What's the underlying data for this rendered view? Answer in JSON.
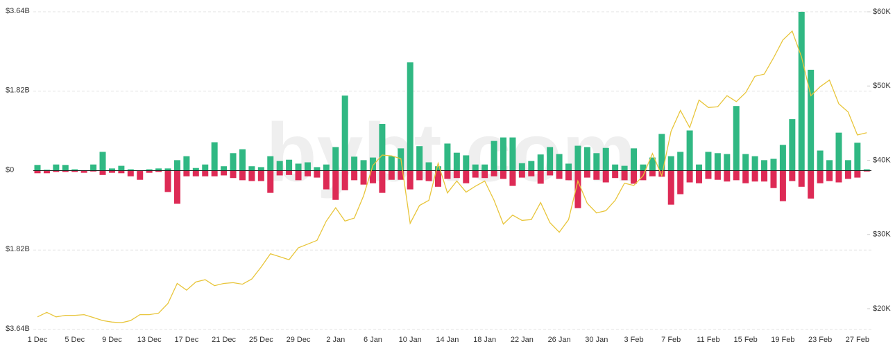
{
  "chart_data": {
    "type": "bar",
    "watermark": "bybt.com",
    "categories": [
      "1 Dec",
      null,
      null,
      null,
      "5 Dec",
      null,
      null,
      null,
      "9 Dec",
      null,
      null,
      null,
      "13 Dec",
      null,
      null,
      null,
      "17 Dec",
      null,
      null,
      null,
      "21 Dec",
      null,
      null,
      null,
      "25 Dec",
      null,
      null,
      null,
      "29 Dec",
      null,
      null,
      null,
      "2 Jan",
      null,
      null,
      null,
      "6 Jan",
      null,
      null,
      null,
      "10 Jan",
      null,
      null,
      null,
      "14 Jan",
      null,
      null,
      null,
      "18 Jan",
      null,
      null,
      null,
      "22 Jan",
      null,
      null,
      null,
      "26 Jan",
      null,
      null,
      null,
      "30 Jan",
      null,
      null,
      null,
      "3 Feb",
      null,
      null,
      null,
      "7 Feb",
      null,
      null,
      null,
      "11 Feb",
      null,
      null,
      null,
      "15 Feb",
      null,
      null,
      null,
      "19 Feb",
      null,
      null,
      null,
      "23 Feb",
      null,
      null,
      null,
      "27 Feb",
      null
    ],
    "series": [
      {
        "type": "bar",
        "color": "#30b883",
        "values": [
          0.13,
          0.02,
          0.14,
          0.13,
          0.03,
          0.01,
          0.14,
          0.43,
          0.05,
          0.11,
          0.03,
          0,
          0.03,
          0.05,
          0.05,
          0.24,
          0.33,
          0.06,
          0.14,
          0.65,
          0.1,
          0.4,
          0.49,
          0.1,
          0.08,
          0.33,
          0.22,
          0.25,
          0.16,
          0.19,
          0.08,
          0.14,
          0.54,
          1.72,
          0.32,
          0.24,
          0.3,
          1.07,
          0.33,
          0.51,
          2.48,
          0.56,
          0.19,
          0.1,
          0.62,
          0.41,
          0.35,
          0.14,
          0.14,
          0.68,
          0.76,
          0.76,
          0.17,
          0.22,
          0.37,
          0.54,
          0.38,
          0.16,
          0.57,
          0.54,
          0.4,
          0.52,
          0.14,
          0.11,
          0.51,
          0.14,
          0.3,
          0.84,
          0.33,
          0.43,
          0.92,
          0.14,
          0.43,
          0.4,
          0.38,
          1.48,
          0.38,
          0.33,
          0.24,
          0.27,
          0.59,
          1.18,
          3.64,
          2.31,
          0.46,
          0.24,
          0.87,
          0.24,
          0.64,
          0.03
        ]
      },
      {
        "type": "bar",
        "color": "#dd2a55",
        "values": [
          -0.06,
          -0.06,
          -0.03,
          -0.03,
          -0.03,
          -0.05,
          -0.02,
          -0.1,
          -0.05,
          -0.06,
          -0.13,
          -0.21,
          -0.05,
          -0.03,
          -0.49,
          -0.76,
          -0.13,
          -0.13,
          -0.13,
          -0.13,
          -0.11,
          -0.17,
          -0.22,
          -0.24,
          -0.24,
          -0.51,
          -0.11,
          -0.1,
          -0.22,
          -0.13,
          -0.16,
          -0.43,
          -0.67,
          -0.45,
          -0.22,
          -0.32,
          -0.29,
          -0.51,
          -0.21,
          -0.21,
          -0.43,
          -0.22,
          -0.24,
          -0.37,
          -0.19,
          -0.17,
          -0.29,
          -0.16,
          -0.17,
          -0.13,
          -0.19,
          -0.35,
          -0.16,
          -0.13,
          -0.3,
          -0.11,
          -0.19,
          -0.22,
          -0.86,
          -0.16,
          -0.21,
          -0.27,
          -0.17,
          -0.22,
          -0.3,
          -0.22,
          -0.13,
          -0.14,
          -0.78,
          -0.54,
          -0.27,
          -0.29,
          -0.19,
          -0.21,
          -0.25,
          -0.22,
          -0.29,
          -0.25,
          -0.25,
          -0.4,
          -0.7,
          -0.24,
          -0.37,
          -0.64,
          -0.29,
          -0.24,
          -0.27,
          -0.19,
          -0.16,
          -0.02
        ]
      },
      {
        "type": "line",
        "axis": "y2",
        "color": "#e8c53a",
        "values": [
          18900,
          19500,
          18900,
          19100,
          19100,
          19200,
          18800,
          18400,
          18200,
          18100,
          18400,
          19200,
          19200,
          19400,
          20700,
          23400,
          22500,
          23600,
          23900,
          23100,
          23400,
          23500,
          23300,
          24000,
          25600,
          27400,
          27000,
          26600,
          28200,
          28700,
          29200,
          31800,
          33600,
          31800,
          32200,
          35200,
          39300,
          40700,
          40600,
          40200,
          31500,
          33900,
          34600,
          39600,
          35600,
          37200,
          35700,
          36500,
          37200,
          34600,
          31400,
          32600,
          31900,
          32000,
          34300,
          31600,
          30300,
          32000,
          37200,
          34200,
          32900,
          33200,
          34600,
          36900,
          36600,
          37900,
          40900,
          37900,
          43900,
          46700,
          44400,
          48100,
          47100,
          47200,
          48700,
          47900,
          49100,
          51300,
          51600,
          53800,
          56200,
          57400,
          53900,
          48700,
          49900,
          50800,
          47600,
          46500,
          43400,
          43700
        ]
      }
    ],
    "ylim": [
      -3.64,
      3.64
    ],
    "yticks": [
      {
        "value": 3.64,
        "label": "$3.64B"
      },
      {
        "value": 1.82,
        "label": "$1.82B"
      },
      {
        "value": 0,
        "label": "$0"
      },
      {
        "value": -1.82,
        "label": "$1.82B"
      },
      {
        "value": -3.64,
        "label": "$3.64B"
      }
    ],
    "y2lim": [
      17200,
      60000
    ],
    "y2ticks": [
      {
        "value": 20000,
        "label": "$20K"
      },
      {
        "value": 30000,
        "label": "$30K"
      },
      {
        "value": 40000,
        "label": "$40K"
      },
      {
        "value": 50000,
        "label": "$50K"
      },
      {
        "value": 60000,
        "label": "$60K"
      }
    ],
    "grid": true
  }
}
